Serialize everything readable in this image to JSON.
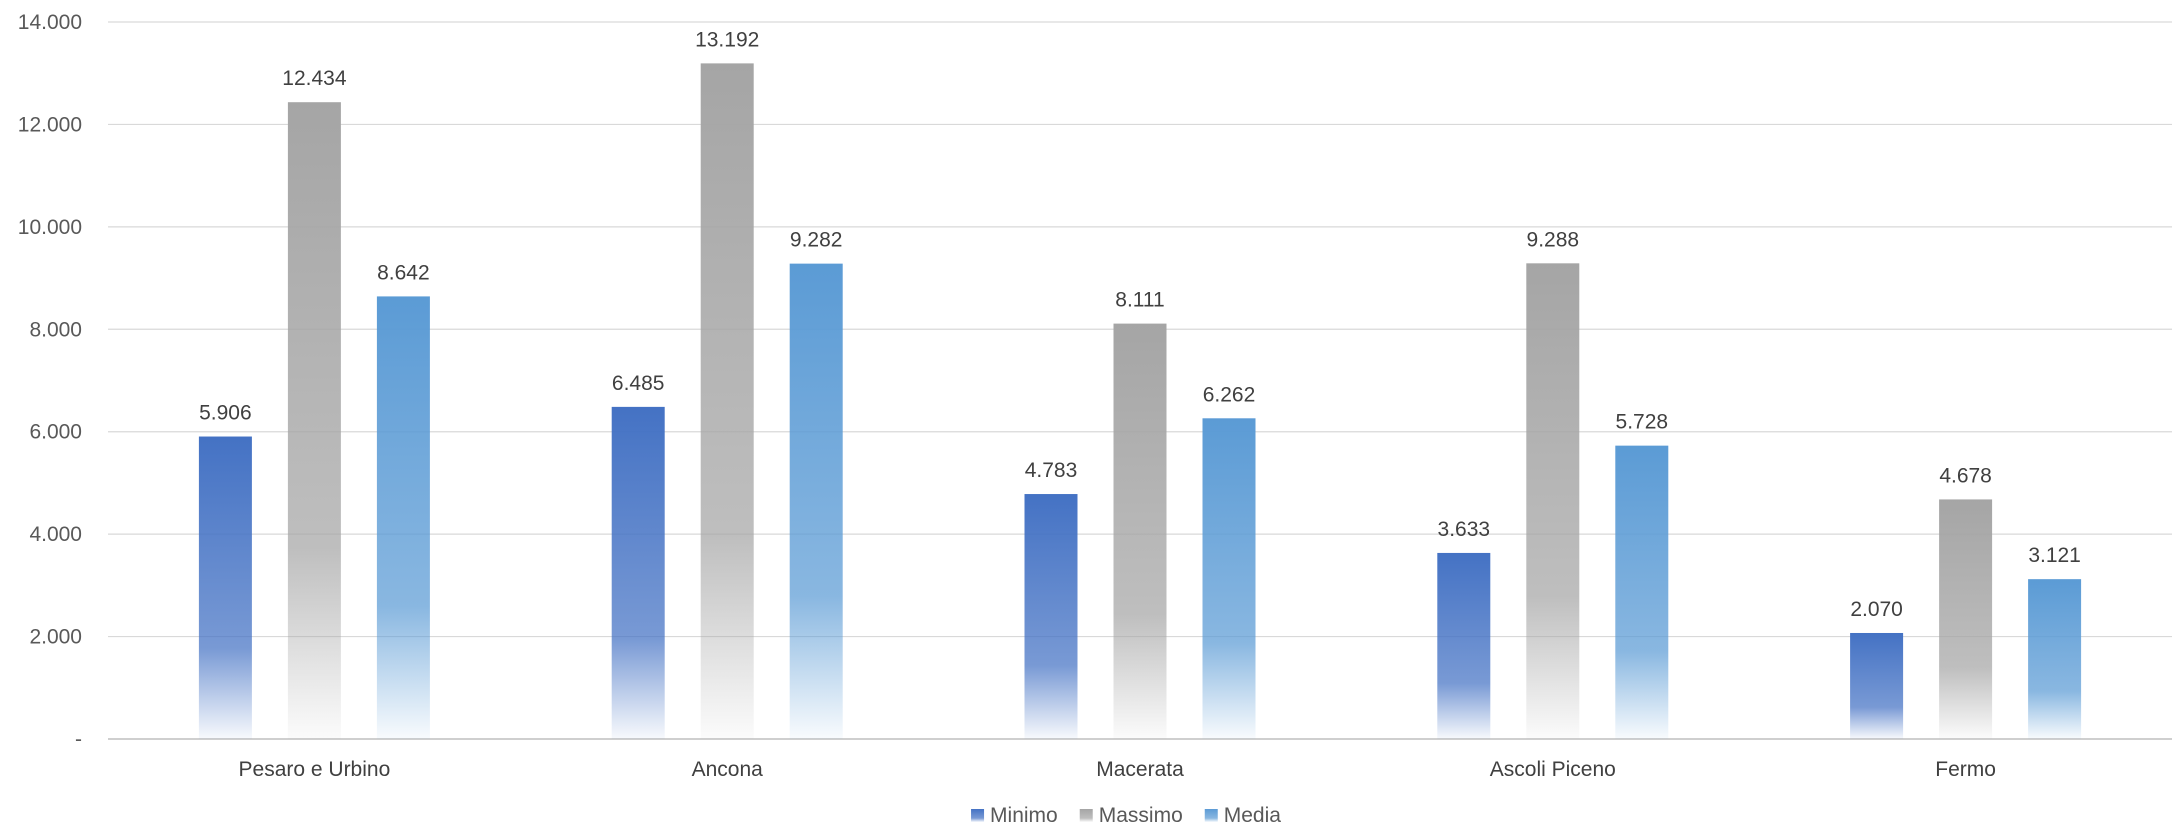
{
  "chart_data": {
    "type": "bar",
    "title": "",
    "xlabel": "",
    "ylabel": "",
    "ylim": [
      0,
      14000
    ],
    "yticks": [
      0,
      2000,
      4000,
      6000,
      8000,
      10000,
      12000,
      14000
    ],
    "ytick_labels": [
      "-",
      "2.000",
      "4.000",
      "6.000",
      "8.000",
      "10.000",
      "12.000",
      "14.000"
    ],
    "grid": true,
    "legend_position": "bottom",
    "categories": [
      "Pesaro e Urbino",
      "Ancona",
      "Macerata",
      "Ascoli Piceno",
      "Fermo"
    ],
    "series": [
      {
        "name": "Minimo",
        "color": "#4472C4",
        "values": [
          5906,
          6485,
          4783,
          3633,
          2070
        ],
        "labels": [
          "5.906",
          "6.485",
          "4.783",
          "3.633",
          "2.070"
        ]
      },
      {
        "name": "Massimo",
        "color": "#A5A5A5",
        "values": [
          12434,
          13192,
          8111,
          9288,
          4678
        ],
        "labels": [
          "12.434",
          "13.192",
          "8.111",
          "9.288",
          "4.678"
        ]
      },
      {
        "name": "Media",
        "color": "#5B9BD5",
        "values": [
          8642,
          9282,
          6262,
          5728,
          3121
        ],
        "labels": [
          "8.642",
          "9.282",
          "6.262",
          "5.728",
          "3.121"
        ]
      }
    ]
  }
}
